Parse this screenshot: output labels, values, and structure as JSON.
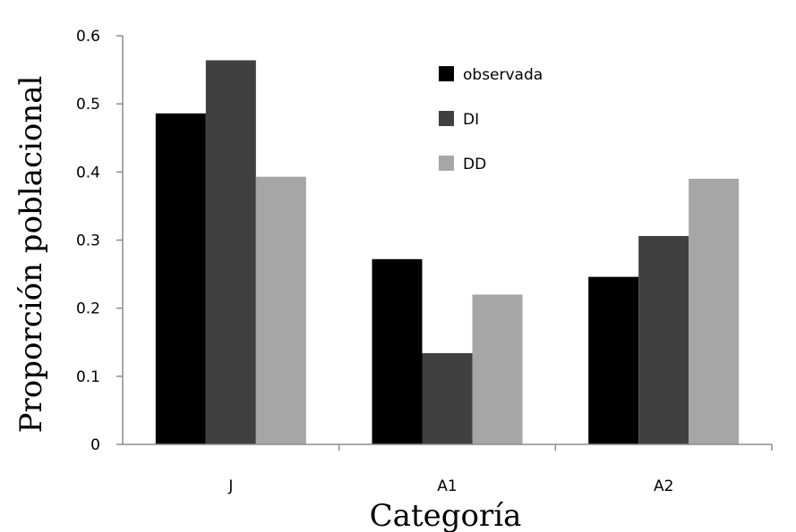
{
  "chart_data": {
    "type": "bar",
    "title": "",
    "xlabel": "Categoría",
    "ylabel": "Proporción poblacional",
    "categories": [
      "J",
      "A1",
      "A2"
    ],
    "ylim": [
      0,
      0.6
    ],
    "yticks": [
      "0",
      "0.1",
      "0.2",
      "0.3",
      "0.4",
      "0.5",
      "0.6"
    ],
    "grid": false,
    "legend_position": "top-right",
    "series": [
      {
        "name": "observada",
        "color": "#000000",
        "values": [
          0.486,
          0.272,
          0.246
        ]
      },
      {
        "name": "DI",
        "color": "#404040",
        "values": [
          0.564,
          0.134,
          0.306
        ]
      },
      {
        "name": "DD",
        "color": "#a6a6a6",
        "values": [
          0.393,
          0.22,
          0.39
        ]
      }
    ]
  }
}
